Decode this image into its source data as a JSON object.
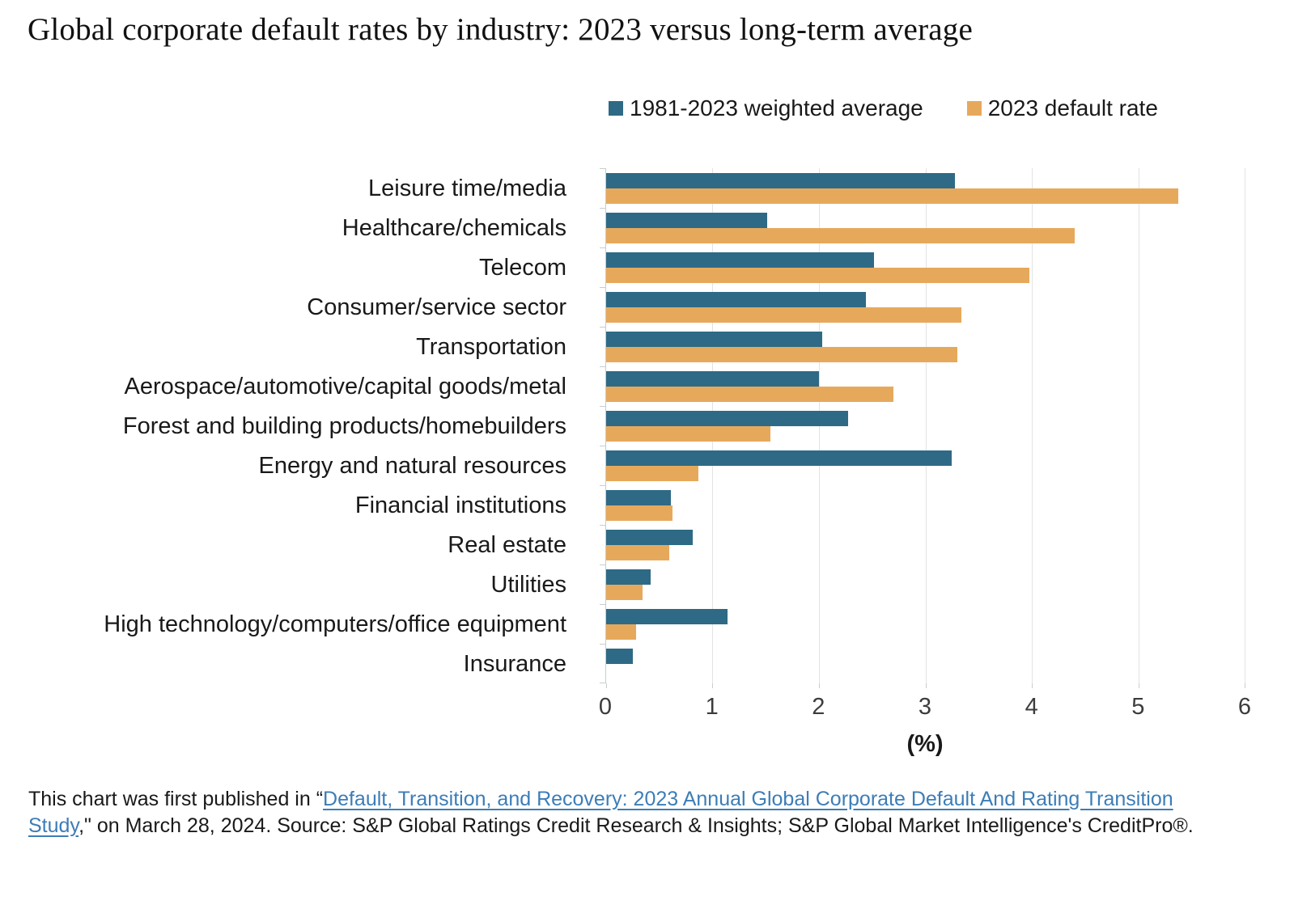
{
  "title": "Global corporate default rates by industry: 2023 versus long-term average",
  "legend": {
    "items": [
      {
        "label": "1981-2023 weighted average",
        "color": "#2e6a85"
      },
      {
        "label": "2023 default rate",
        "color": "#e6a95c"
      }
    ]
  },
  "chart_data": {
    "type": "bar",
    "orientation": "horizontal",
    "title": "Global corporate default rates by industry: 2023 versus long-term average",
    "categories": [
      "Leisure time/media",
      "Healthcare/chemicals",
      "Telecom",
      "Consumer/service sector",
      "Transportation",
      "Aerospace/automotive/capital goods/metal",
      "Forest and building products/homebuilders",
      "Energy and natural resources",
      "Financial institutions",
      "Real estate",
      "Utilities",
      "High technology/computers/office equipment",
      "Insurance"
    ],
    "series": [
      {
        "name": "1981-2023 weighted average",
        "color": "#2e6a85",
        "values": [
          3.28,
          1.51,
          2.52,
          2.44,
          2.03,
          2.0,
          2.27,
          3.25,
          0.61,
          0.81,
          0.42,
          1.14,
          0.25
        ]
      },
      {
        "name": "2023 default rate",
        "color": "#e6a95c",
        "values": [
          5.38,
          4.4,
          3.98,
          3.34,
          3.3,
          2.7,
          1.54,
          0.87,
          0.62,
          0.59,
          0.34,
          0.28,
          0
        ]
      }
    ],
    "xlabel": "(%)",
    "xlim": [
      0,
      6
    ],
    "xticks": [
      0,
      1,
      2,
      3,
      4,
      5,
      6
    ],
    "grid": true,
    "legend_position": "top-right"
  },
  "footer": {
    "prefix": "This chart was first published in “",
    "link_text": "Default, Transition, and Recovery: 2023 Annual Global Corporate Default And Rating Transition Study",
    "suffix": ",\" on March 28, 2024. Source: S&P Global Ratings Credit Research & Insights; S&P Global Market Intelligence's CreditPro®.",
    "link_color": "#3c7db7"
  },
  "colors": {
    "gridline": "#e3e3e3",
    "axis": "#c9cdd0",
    "series1": "#2e6a85",
    "series2": "#e6a95c",
    "link": "#3c7db7"
  }
}
